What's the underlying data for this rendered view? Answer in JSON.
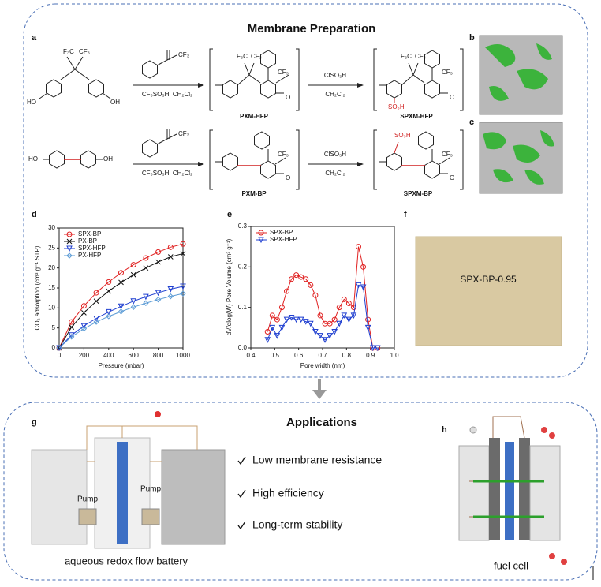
{
  "panel_labels": [
    "a",
    "b",
    "c",
    "d",
    "e",
    "f",
    "g",
    "h"
  ],
  "preparation": {
    "title": "Membrane Preparation",
    "reagents": [
      "CF₃SO₃H, CH₂Cl₂",
      "ClSO₃H",
      "CH₂Cl₂",
      "CF₃SO₃H, CH₂Cl₂",
      "ClSO₃H",
      "CH₂Cl₂"
    ],
    "products": [
      "PXM-HFP",
      "SPXM-HFP",
      "PXM-BP",
      "SPXM-BP"
    ],
    "groups": [
      "F₃C",
      "CF₃",
      "HO",
      "OH",
      "CF₃",
      "O",
      "F₃C",
      "CF₃",
      "CF₃",
      "O",
      "F₃C",
      "CF₃",
      "CF₃",
      "O",
      "SO₃H",
      "HO",
      "OH",
      "CF₃",
      "O",
      "CF₃",
      "O",
      "SO₃H",
      "CF₃",
      "O"
    ]
  },
  "sample_label": "SPX-BP-0.95",
  "applications": {
    "title": "Applications",
    "items": [
      "Low membrane resistance",
      "High efficiency",
      "Long-term stability"
    ],
    "devices": [
      "aqueous redox flow battery",
      "fuel cell"
    ],
    "pump": [
      "Pump",
      "Pump"
    ]
  },
  "chart_data": [
    {
      "type": "line",
      "xlabel": "Pressure (mbar)",
      "ylabel": "CO₂ adsorption (cm³ g⁻¹ STP)",
      "x": [
        0,
        100,
        200,
        300,
        400,
        500,
        600,
        700,
        800,
        900,
        1000
      ],
      "xlim": [
        0,
        1000
      ],
      "xticks": [
        0,
        200,
        400,
        600,
        800,
        1000
      ],
      "ylim": [
        0,
        30
      ],
      "yticks": [
        0,
        5,
        10,
        15,
        20,
        25,
        30
      ],
      "legend": "upper left",
      "series": [
        {
          "name": "SPX-BP",
          "color": "#e02020",
          "marker": "circle",
          "values": [
            0,
            6.5,
            10.5,
            13.8,
            16.5,
            18.8,
            20.8,
            22.5,
            24,
            25.2,
            26
          ]
        },
        {
          "name": "PX-BP",
          "color": "#111111",
          "marker": "cross",
          "values": [
            0,
            5.2,
            8.8,
            11.7,
            14.2,
            16.4,
            18.3,
            20,
            21.5,
            22.8,
            23.6
          ]
        },
        {
          "name": "SPX-HFP",
          "color": "#1f3fd0",
          "marker": "triangle",
          "values": [
            0,
            3.2,
            5.5,
            7.4,
            9,
            10.4,
            11.7,
            12.8,
            13.8,
            14.7,
            15.4
          ]
        },
        {
          "name": "PX-HFP",
          "color": "#5b9bd5",
          "marker": "diamond",
          "values": [
            0,
            2.8,
            4.8,
            6.5,
            7.9,
            9.1,
            10.2,
            11.2,
            12.1,
            12.9,
            13.6
          ]
        }
      ]
    },
    {
      "type": "line",
      "xlabel": "Pore width (nm)",
      "ylabel": "dV/dlog(W) Pore Volume (cm³ g⁻¹)",
      "x": [
        0.47,
        0.49,
        0.51,
        0.53,
        0.55,
        0.57,
        0.59,
        0.61,
        0.63,
        0.65,
        0.67,
        0.69,
        0.71,
        0.73,
        0.75,
        0.77,
        0.79,
        0.81,
        0.83,
        0.85,
        0.87,
        0.89,
        0.91,
        0.93
      ],
      "xlim": [
        0.4,
        1.0
      ],
      "xticks": [
        0.4,
        0.5,
        0.6,
        0.7,
        0.8,
        0.9,
        {
          "value": 1.0,
          "label": "1.0"
        }
      ],
      "ylim": [
        0,
        0.3
      ],
      "yticks": [
        {
          "value": 0,
          "label": "0.0"
        },
        0.1,
        0.2,
        0.3
      ],
      "legend": "upper left",
      "series": [
        {
          "name": "SPX-BP",
          "color": "#e02020",
          "marker": "circle",
          "values": [
            0.04,
            0.08,
            0.07,
            0.1,
            0.14,
            0.17,
            0.18,
            0.175,
            0.17,
            0.155,
            0.13,
            0.08,
            0.06,
            0.06,
            0.07,
            0.1,
            0.12,
            0.11,
            0.1,
            0.25,
            0.2,
            0.07,
            0,
            0
          ]
        },
        {
          "name": "SPX-HFP",
          "color": "#1f3fd0",
          "marker": "triangle",
          "values": [
            0.02,
            0.05,
            0.03,
            0.05,
            0.07,
            0.075,
            0.07,
            0.07,
            0.065,
            0.06,
            0.04,
            0.03,
            0.02,
            0.03,
            0.04,
            0.06,
            0.08,
            0.07,
            0.08,
            0.155,
            0.15,
            0.05,
            0,
            0
          ]
        }
      ]
    }
  ]
}
